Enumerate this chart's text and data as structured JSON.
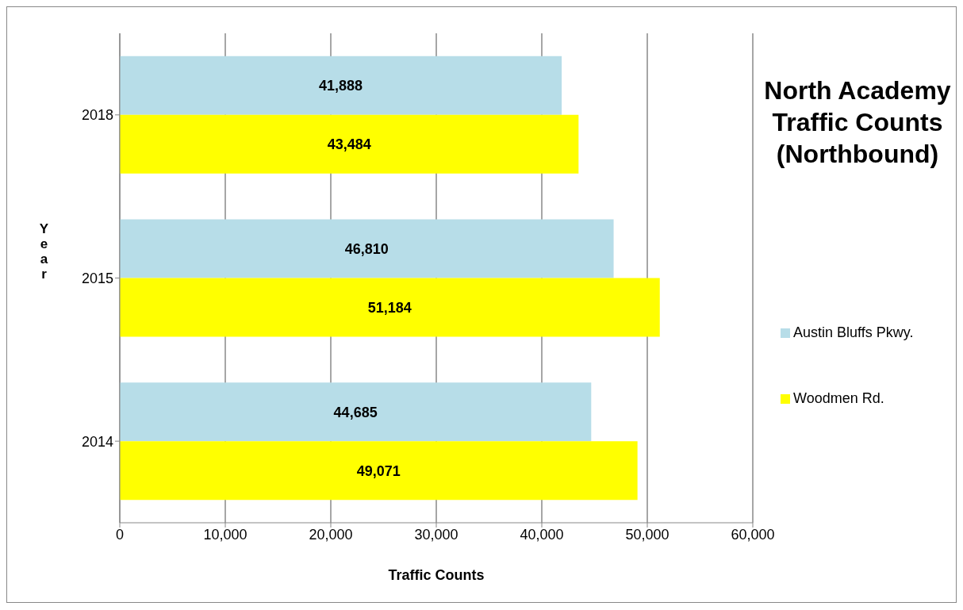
{
  "chart_data": {
    "type": "bar",
    "orientation": "horizontal",
    "title": "North Academy Traffic Counts (Northbound)",
    "xlabel": "Traffic Counts",
    "ylabel": "Year",
    "categories": [
      "2018",
      "2015",
      "2014"
    ],
    "series": [
      {
        "name": "Austin Bluffs Pkwy.",
        "color": "#b7dde8",
        "values": [
          41888,
          46810,
          44685
        ],
        "value_labels": [
          "41,888",
          "46,810",
          "44,685"
        ]
      },
      {
        "name": "Woodmen Rd.",
        "color": "#ffff00",
        "values": [
          43484,
          51184,
          49071
        ],
        "value_labels": [
          "43,484",
          "51,184",
          "49,071"
        ]
      }
    ],
    "xlim": [
      0,
      60000
    ],
    "xticks": [
      0,
      {
        "value": 10000,
        "label": "10,000"
      },
      {
        "value": 20000,
        "label": "20,000"
      },
      {
        "value": 30000,
        "label": "30,000"
      },
      {
        "value": 40000,
        "label": "40,000"
      },
      {
        "value": 50000,
        "label": "50,000"
      },
      {
        "value": 60000,
        "label": "60,000"
      }
    ],
    "grid": "x",
    "legend": "right"
  }
}
